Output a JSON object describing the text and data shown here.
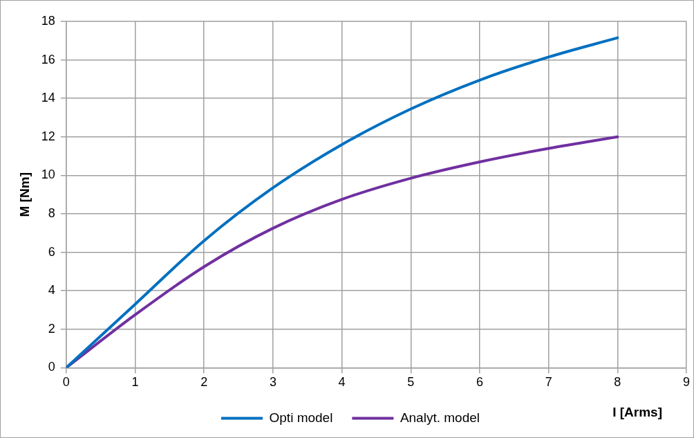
{
  "chart_data": {
    "type": "line",
    "xlabel": "I [Arms]",
    "ylabel": "M [Nm]",
    "x": [
      0,
      1,
      2,
      3,
      4,
      5,
      6,
      7,
      8
    ],
    "series": [
      {
        "name": "Opti model",
        "color": "#0070c0",
        "values": [
          0,
          3.3,
          6.6,
          9.35,
          11.6,
          13.45,
          14.95,
          16.15,
          17.15
        ]
      },
      {
        "name": "Analyt. model",
        "color": "#7030a0",
        "values": [
          0,
          2.75,
          5.25,
          7.25,
          8.75,
          9.85,
          10.7,
          11.4,
          12
        ]
      }
    ],
    "xlim": [
      0,
      9
    ],
    "xticks": [
      0,
      1,
      2,
      3,
      4,
      5,
      6,
      7,
      8,
      9
    ],
    "ylim": [
      0,
      18
    ],
    "yticks": [
      0,
      2,
      4,
      6,
      8,
      10,
      12,
      14,
      16,
      18
    ],
    "grid": true,
    "legend": "bottom",
    "marker": "none",
    "line_style": "solid"
  }
}
